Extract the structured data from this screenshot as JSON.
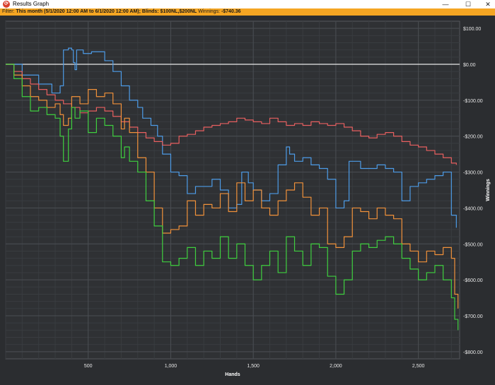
{
  "window": {
    "title": "Results Graph",
    "minimize": "—",
    "maximize": "☐",
    "close": "✕"
  },
  "filter": {
    "prefix": "Filter: ",
    "text": "This month (5/1/2020 12:00 AM to 6/1/2020 12:00 AM); Blinds: $100NL,$200NL",
    "winnings_label": " Winnings: ",
    "winnings_value": "-$740.36"
  },
  "chart_data": {
    "type": "line",
    "xlabel": "Hands",
    "ylabel": "Winnings",
    "xlim": [
      0,
      2750
    ],
    "ylim": [
      -820,
      120
    ],
    "x_ticks": [
      500,
      1000,
      1500,
      2000,
      2500
    ],
    "x_tick_labels": [
      "500",
      "1,000",
      "1,500",
      "2,000",
      "2,500"
    ],
    "y_ticks": [
      100,
      0,
      -100,
      -200,
      -300,
      -400,
      -500,
      -600,
      -700,
      -800
    ],
    "y_tick_labels": [
      "$100.00",
      "$0.00",
      "-$100.00",
      "-$200.00",
      "-$300.00",
      "-$400.00",
      "-$500.00",
      "-$600.00",
      "-$700.00",
      "-$800.00"
    ],
    "grid": true,
    "zero_line": true,
    "series": [
      {
        "color": "#4d9be6",
        "x": [
          0,
          100,
          200,
          280,
          330,
          350,
          380,
          400,
          410,
          420,
          430,
          440,
          470,
          520,
          600,
          650,
          700,
          750,
          800,
          830,
          880,
          900,
          920,
          950,
          1000,
          1050,
          1100,
          1150,
          1200,
          1250,
          1300,
          1350,
          1400,
          1430,
          1470,
          1500,
          1550,
          1600,
          1650,
          1700,
          1720,
          1750,
          1800,
          1850,
          1900,
          1950,
          2000,
          2050,
          2080,
          2100,
          2150,
          2200,
          2250,
          2300,
          2350,
          2400,
          2450,
          2500,
          2550,
          2600,
          2650,
          2700,
          2730
        ],
        "values": [
          0,
          -30,
          -55,
          -80,
          -60,
          40,
          45,
          40,
          5,
          -15,
          40,
          40,
          30,
          35,
          10,
          -20,
          -60,
          -100,
          -120,
          -150,
          -170,
          -170,
          -200,
          -250,
          -300,
          -310,
          -360,
          -340,
          -340,
          -320,
          -350,
          -400,
          -390,
          -300,
          -330,
          -350,
          -380,
          -360,
          -280,
          -230,
          -250,
          -270,
          -260,
          -280,
          -290,
          -320,
          -400,
          -380,
          -270,
          -270,
          -290,
          -290,
          -280,
          -290,
          -300,
          -380,
          -340,
          -330,
          -320,
          -310,
          -300,
          -420,
          -455
        ]
      },
      {
        "color": "#e86060",
        "x": [
          0,
          50,
          100,
          150,
          200,
          250,
          300,
          350,
          400,
          450,
          500,
          550,
          600,
          650,
          700,
          750,
          800,
          850,
          900,
          950,
          1000,
          1050,
          1100,
          1150,
          1200,
          1250,
          1300,
          1350,
          1400,
          1450,
          1500,
          1550,
          1600,
          1650,
          1700,
          1750,
          1800,
          1850,
          1900,
          1950,
          2000,
          2050,
          2100,
          2150,
          2200,
          2250,
          2300,
          2350,
          2400,
          2450,
          2500,
          2550,
          2600,
          2650,
          2700,
          2730
        ],
        "values": [
          0,
          -20,
          -40,
          -55,
          -70,
          -85,
          -100,
          -110,
          -120,
          -135,
          -130,
          -120,
          -130,
          -145,
          -160,
          -175,
          -190,
          -205,
          -215,
          -225,
          -220,
          -200,
          -195,
          -185,
          -175,
          -170,
          -165,
          -160,
          -150,
          -155,
          -160,
          -165,
          -150,
          -160,
          -170,
          -165,
          -170,
          -160,
          -165,
          -170,
          -165,
          -175,
          -185,
          -200,
          -205,
          -195,
          -190,
          -200,
          -215,
          -225,
          -230,
          -240,
          -250,
          -260,
          -275,
          -280
        ]
      },
      {
        "color": "#f0913a",
        "x": [
          0,
          50,
          100,
          150,
          200,
          250,
          300,
          330,
          350,
          380,
          400,
          450,
          500,
          550,
          600,
          650,
          700,
          720,
          750,
          800,
          850,
          900,
          950,
          1000,
          1050,
          1100,
          1150,
          1200,
          1250,
          1300,
          1350,
          1400,
          1450,
          1500,
          1550,
          1600,
          1650,
          1700,
          1750,
          1800,
          1850,
          1900,
          1950,
          2000,
          2050,
          2100,
          2150,
          2200,
          2250,
          2300,
          2350,
          2400,
          2450,
          2500,
          2550,
          2600,
          2650,
          2700,
          2720,
          2740
        ],
        "values": [
          0,
          -30,
          -60,
          -90,
          -100,
          -120,
          -110,
          -140,
          -170,
          -150,
          -90,
          -110,
          -70,
          -90,
          -80,
          -110,
          -180,
          -150,
          -190,
          -260,
          -300,
          -400,
          -470,
          -460,
          -450,
          -380,
          -420,
          -390,
          -400,
          -360,
          -410,
          -330,
          -380,
          -350,
          -400,
          -420,
          -380,
          -350,
          -330,
          -370,
          -420,
          -400,
          -500,
          -510,
          -480,
          -400,
          -410,
          -430,
          -400,
          -420,
          -430,
          -500,
          -520,
          -550,
          -520,
          -530,
          -510,
          -540,
          -640,
          -680
        ]
      },
      {
        "color": "#3fcf3f",
        "x": [
          0,
          50,
          100,
          150,
          200,
          250,
          300,
          330,
          350,
          380,
          400,
          420,
          450,
          500,
          550,
          600,
          650,
          700,
          720,
          750,
          800,
          850,
          900,
          950,
          1000,
          1050,
          1100,
          1150,
          1200,
          1250,
          1300,
          1350,
          1400,
          1450,
          1500,
          1550,
          1600,
          1650,
          1700,
          1750,
          1800,
          1850,
          1900,
          1950,
          2000,
          2050,
          2100,
          2150,
          2200,
          2250,
          2300,
          2350,
          2400,
          2450,
          2500,
          2550,
          2600,
          2650,
          2700,
          2720,
          2740
        ],
        "values": [
          0,
          -40,
          -90,
          -130,
          -120,
          -140,
          -150,
          -200,
          -270,
          -180,
          -120,
          -150,
          -130,
          -190,
          -150,
          -170,
          -200,
          -260,
          -230,
          -270,
          -300,
          -380,
          -450,
          -550,
          -560,
          -540,
          -510,
          -560,
          -520,
          -540,
          -480,
          -540,
          -500,
          -560,
          -600,
          -560,
          -520,
          -580,
          -480,
          -520,
          -560,
          -500,
          -510,
          -590,
          -640,
          -600,
          -520,
          -500,
          -510,
          -490,
          -480,
          -500,
          -540,
          -570,
          -600,
          -580,
          -560,
          -600,
          -650,
          -710,
          -740
        ]
      }
    ]
  }
}
